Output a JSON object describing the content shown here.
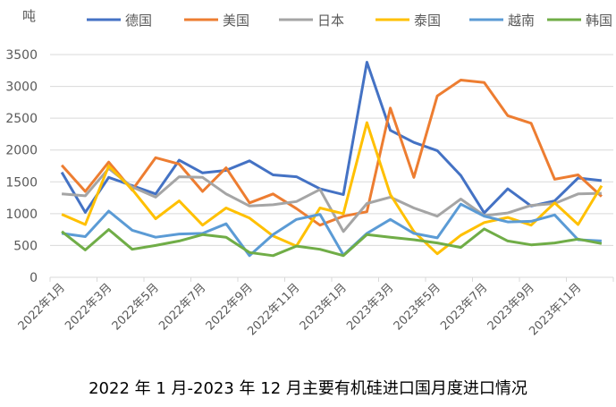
{
  "chart_data": {
    "type": "line",
    "title": "2022 年 1 月-2023 年 12 月主要有机硅进口国月度进口情况",
    "ylabel": "吨",
    "ylim": [
      0,
      3500
    ],
    "yticks": [
      0,
      500,
      1000,
      1500,
      2000,
      2500,
      3000,
      3500
    ],
    "grid": true,
    "legend_position": "top",
    "categories": [
      "2022年1月",
      "2022年2月",
      "2022年3月",
      "2022年4月",
      "2022年5月",
      "2022年6月",
      "2022年7月",
      "2022年8月",
      "2022年9月",
      "2022年10月",
      "2022年11月",
      "2022年12月",
      "2023年1月",
      "2023年2月",
      "2023年3月",
      "2023年4月",
      "2023年5月",
      "2023年6月",
      "2023年7月",
      "2023年8月",
      "2023年9月",
      "2023年10月",
      "2023年11月",
      "2023年12月"
    ],
    "tick_labels": [
      "2022年1月",
      "2022年3月",
      "2022年5月",
      "2022年7月",
      "2022年9月",
      "2022年11月",
      "2023年1月",
      "2023年3月",
      "2023年5月",
      "2023年7月",
      "2023年9月",
      "2023年11月"
    ],
    "series": [
      {
        "name": "德国",
        "color": "#4472C4",
        "values": [
          1650,
          1020,
          1570,
          1440,
          1310,
          1840,
          1640,
          1680,
          1830,
          1610,
          1580,
          1390,
          1300,
          3380,
          2310,
          2120,
          1990,
          1600,
          1010,
          1390,
          1120,
          1200,
          1560,
          1520
        ]
      },
      {
        "name": "美国",
        "color": "#ED7D31",
        "values": [
          1760,
          1350,
          1810,
          1370,
          1880,
          1780,
          1350,
          1720,
          1170,
          1310,
          1080,
          820,
          960,
          1030,
          2660,
          1570,
          2850,
          3100,
          3060,
          2540,
          2420,
          1540,
          1610,
          1270
        ]
      },
      {
        "name": "日本",
        "color": "#A5A5A5",
        "values": [
          1310,
          1280,
          1710,
          1420,
          1260,
          1580,
          1570,
          1310,
          1120,
          1140,
          1190,
          1380,
          720,
          1160,
          1260,
          1090,
          960,
          1230,
          970,
          1010,
          1130,
          1160,
          1310,
          1320
        ]
      },
      {
        "name": "泰国",
        "color": "#FFC000",
        "values": [
          990,
          830,
          1750,
          1380,
          920,
          1200,
          820,
          1090,
          930,
          650,
          490,
          1090,
          1000,
          2430,
          1300,
          720,
          370,
          660,
          860,
          940,
          820,
          1170,
          830,
          1440
        ]
      },
      {
        "name": "越南",
        "color": "#5B9BD5",
        "values": [
          690,
          640,
          1040,
          740,
          630,
          680,
          690,
          840,
          340,
          670,
          910,
          990,
          350,
          690,
          910,
          690,
          620,
          1150,
          960,
          870,
          880,
          980,
          590,
          570
        ]
      },
      {
        "name": "韩国",
        "color": "#70AD47",
        "values": [
          720,
          430,
          750,
          440,
          500,
          570,
          670,
          630,
          390,
          340,
          490,
          440,
          340,
          670,
          630,
          590,
          540,
          470,
          760,
          570,
          510,
          540,
          600,
          530
        ]
      }
    ]
  }
}
